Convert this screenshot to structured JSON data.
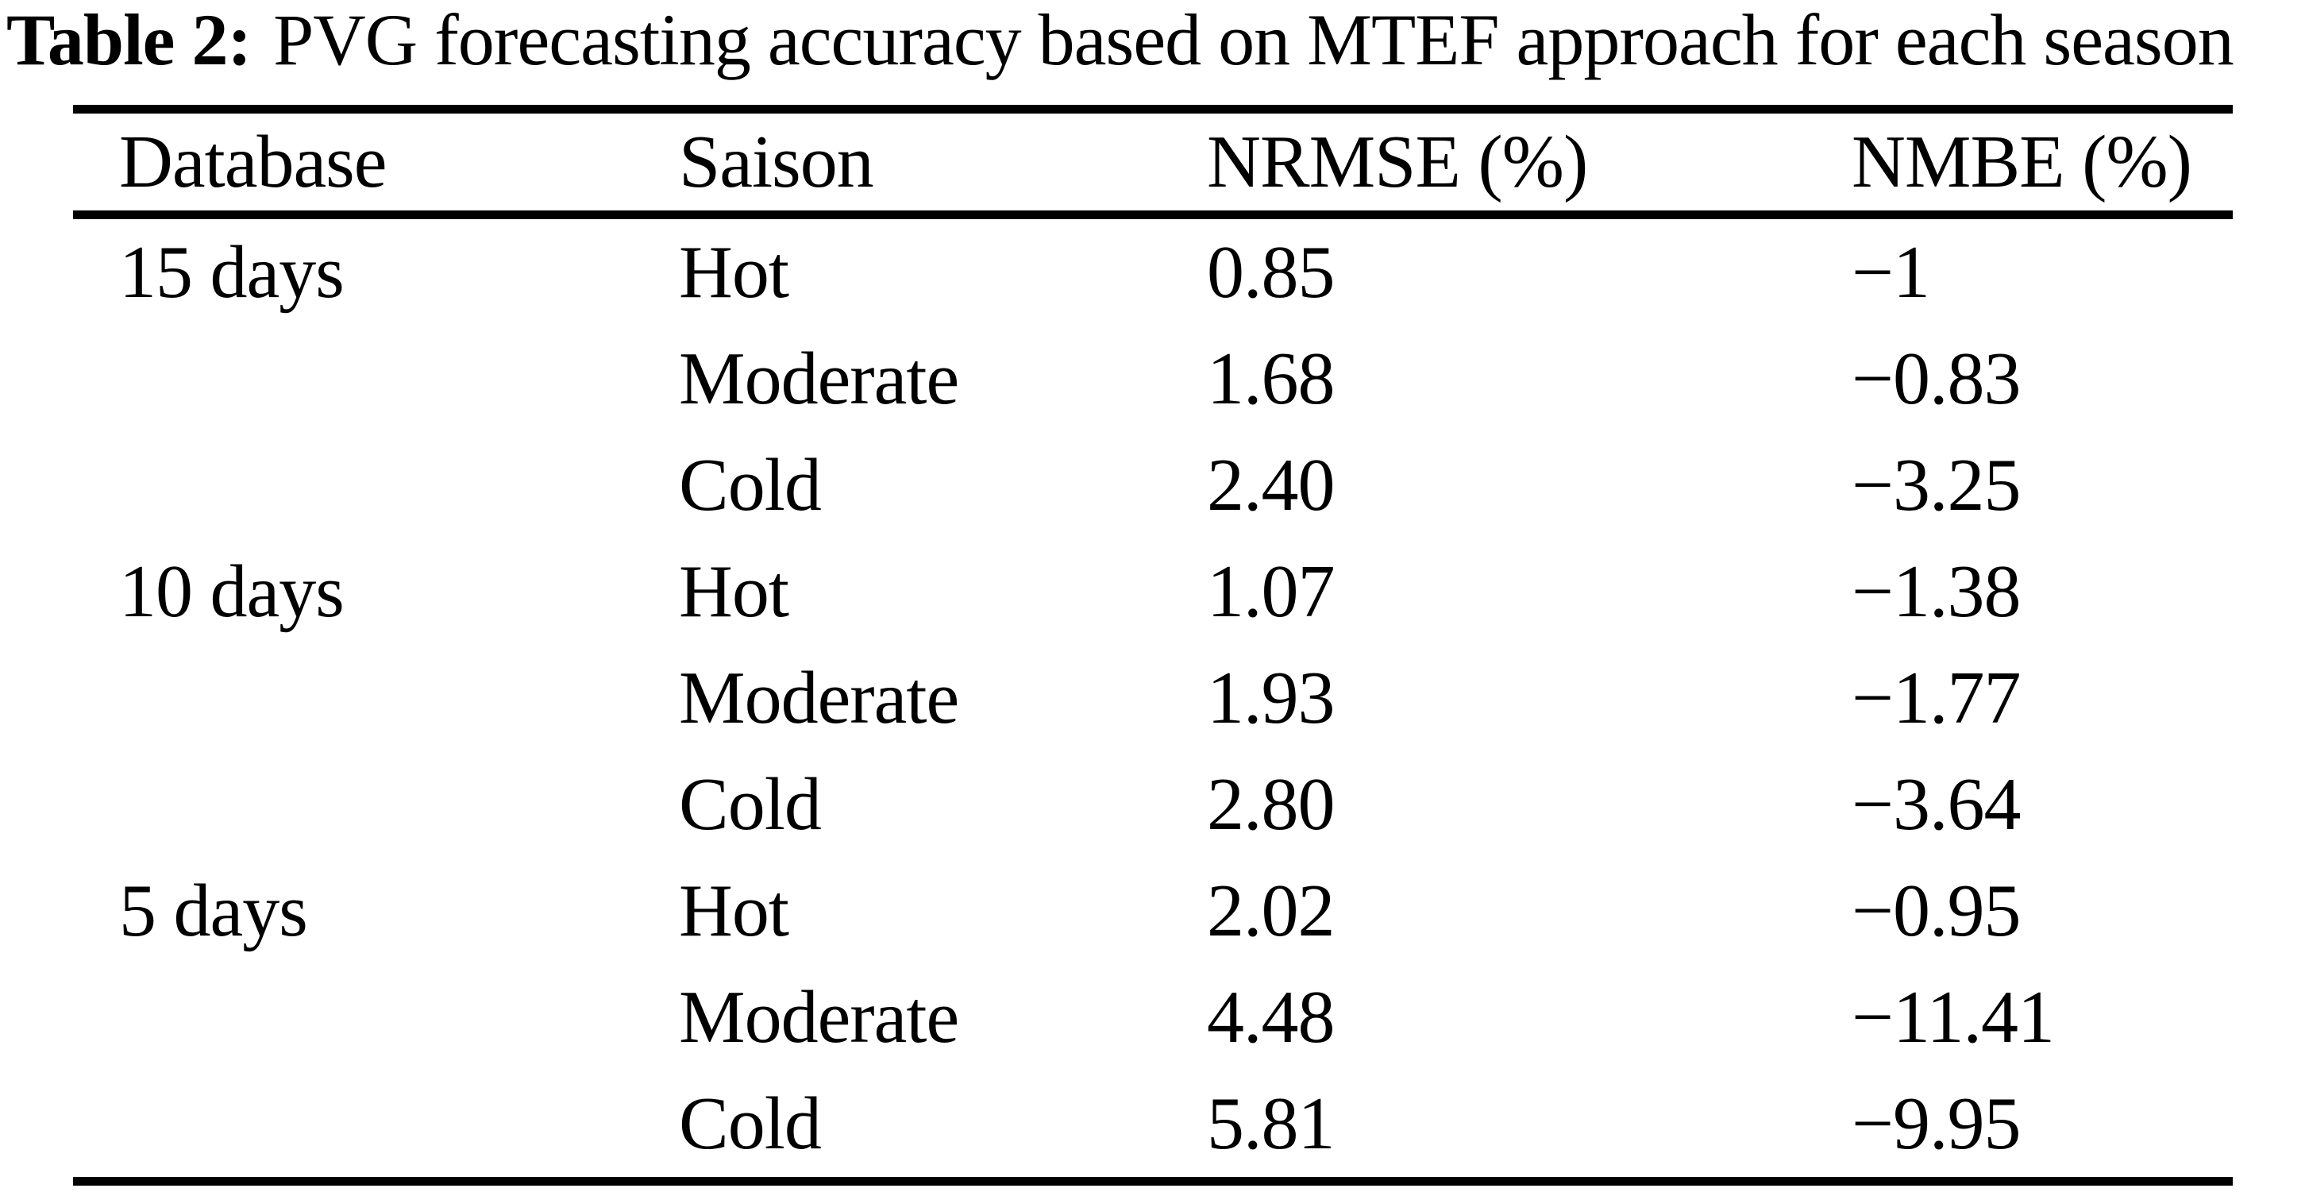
{
  "caption": {
    "label": "Table 2:",
    "text": "PVG forecasting accuracy based on MTEF approach for each season"
  },
  "table": {
    "columns": {
      "database": "Database",
      "saison": "Saison",
      "nrmse": "NRMSE (%)",
      "nmbe": "NMBE (%)"
    },
    "rows": [
      {
        "database": "15 days",
        "saison": "Hot",
        "nrmse": "0.85",
        "nmbe": "−1"
      },
      {
        "database": "",
        "saison": "Moderate",
        "nrmse": "1.68",
        "nmbe": "−0.83"
      },
      {
        "database": "",
        "saison": "Cold",
        "nrmse": "2.40",
        "nmbe": "−3.25"
      },
      {
        "database": "10 days",
        "saison": "Hot",
        "nrmse": "1.07",
        "nmbe": "−1.38"
      },
      {
        "database": "",
        "saison": "Moderate",
        "nrmse": "1.93",
        "nmbe": "−1.77"
      },
      {
        "database": "",
        "saison": "Cold",
        "nrmse": "2.80",
        "nmbe": "−3.64"
      },
      {
        "database": "5 days",
        "saison": "Hot",
        "nrmse": "2.02",
        "nmbe": "−0.95"
      },
      {
        "database": "",
        "saison": "Moderate",
        "nrmse": "4.48",
        "nmbe": "−11.41"
      },
      {
        "database": "",
        "saison": "Cold",
        "nrmse": "5.81",
        "nmbe": "−9.95"
      }
    ]
  },
  "chart_data": {
    "type": "table",
    "title": "Table 2: PVG forecasting accuracy based on MTEF approach for each season",
    "columns": [
      "Database",
      "Saison",
      "NRMSE (%)",
      "NMBE (%)"
    ],
    "rows": [
      [
        "15 days",
        "Hot",
        0.85,
        -1
      ],
      [
        "",
        "Moderate",
        1.68,
        -0.83
      ],
      [
        "",
        "Cold",
        2.4,
        -3.25
      ],
      [
        "10 days",
        "Hot",
        1.07,
        -1.38
      ],
      [
        "",
        "Moderate",
        1.93,
        -1.77
      ],
      [
        "",
        "Cold",
        2.8,
        -3.64
      ],
      [
        "5 days",
        "Hot",
        2.02,
        -0.95
      ],
      [
        "",
        "Moderate",
        4.48,
        -11.41
      ],
      [
        "",
        "Cold",
        5.81,
        -9.95
      ]
    ]
  }
}
